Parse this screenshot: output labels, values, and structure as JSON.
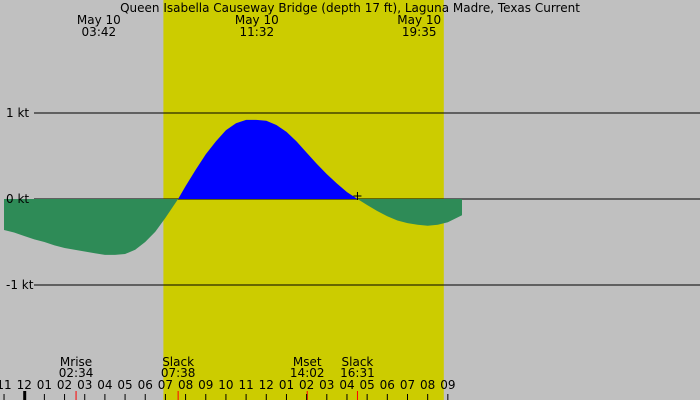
{
  "chart_data": {
    "type": "area",
    "title": "Queen Isabella Causeway Bridge (depth 17 ft), Laguna Madre, Texas Current",
    "units": "kt",
    "xlabel": "",
    "ylabel": "",
    "ylim": [
      -2.3,
      2.3
    ],
    "y_ticks": [
      {
        "value": 1,
        "label": "1 kt"
      },
      {
        "value": 0,
        "label": "0 kt"
      },
      {
        "value": -1,
        "label": "-1 kt"
      }
    ],
    "x_range_hours": [
      23,
      57.7
    ],
    "daylight_hours": [
      30.9,
      44.8
    ],
    "x_ticks": [
      {
        "hour": 23,
        "label": "11"
      },
      {
        "hour": 24,
        "label": "12"
      },
      {
        "hour": 25,
        "label": "01"
      },
      {
        "hour": 26,
        "label": "02"
      },
      {
        "hour": 27,
        "label": "03"
      },
      {
        "hour": 28,
        "label": "04"
      },
      {
        "hour": 29,
        "label": "05"
      },
      {
        "hour": 30,
        "label": "06"
      },
      {
        "hour": 31,
        "label": "07"
      },
      {
        "hour": 32,
        "label": "08"
      },
      {
        "hour": 33,
        "label": "09"
      },
      {
        "hour": 34,
        "label": "10"
      },
      {
        "hour": 35,
        "label": "11"
      },
      {
        "hour": 36,
        "label": "12"
      },
      {
        "hour": 37,
        "label": "01"
      },
      {
        "hour": 38,
        "label": "02"
      },
      {
        "hour": 39,
        "label": "03"
      },
      {
        "hour": 40,
        "label": "04"
      },
      {
        "hour": 41,
        "label": "05"
      },
      {
        "hour": 42,
        "label": "06"
      },
      {
        "hour": 43,
        "label": "07"
      },
      {
        "hour": 44,
        "label": "08"
      },
      {
        "hour": 45,
        "label": "09"
      }
    ],
    "midnight_hour": 24,
    "top_events": [
      {
        "hour": 27.7,
        "date": "May 10",
        "time": "03:42"
      },
      {
        "hour": 35.53,
        "date": "May 10",
        "time": "11:32"
      },
      {
        "hour": 43.58,
        "date": "May 10",
        "time": "19:35"
      }
    ],
    "bottom_events": [
      {
        "hour": 26.57,
        "label": "Mrise",
        "time": "02:34"
      },
      {
        "hour": 31.63,
        "label": "Slack",
        "time": "07:38"
      },
      {
        "hour": 38.03,
        "label": "Mset",
        "time": "14:02"
      },
      {
        "hour": 40.52,
        "label": "Slack",
        "time": "16:31"
      }
    ],
    "series": [
      {
        "x": [
          23,
          23.5,
          24,
          24.5,
          25,
          25.5,
          26,
          26.5,
          27,
          27.5,
          28,
          28.5,
          29,
          29.5,
          30,
          30.5,
          31,
          31.63,
          32,
          32.5,
          33,
          33.5,
          34,
          34.5,
          35,
          35.5,
          36,
          36.5,
          37,
          37.5,
          38,
          38.5,
          39,
          39.5,
          40,
          40.52,
          41,
          41.5,
          42,
          42.5,
          43,
          43.5,
          44,
          44.5,
          45,
          45.7
        ],
        "y": [
          -0.36,
          -0.39,
          -0.43,
          -0.47,
          -0.5,
          -0.54,
          -0.57,
          -0.59,
          -0.61,
          -0.63,
          -0.65,
          -0.65,
          -0.64,
          -0.59,
          -0.5,
          -0.38,
          -0.22,
          0,
          0.15,
          0.34,
          0.52,
          0.67,
          0.8,
          0.88,
          0.92,
          0.92,
          0.91,
          0.86,
          0.78,
          0.67,
          0.54,
          0.41,
          0.29,
          0.18,
          0.08,
          0,
          -0.07,
          -0.14,
          -0.2,
          -0.25,
          -0.28,
          -0.3,
          -0.31,
          -0.3,
          -0.27,
          -0.19
        ]
      }
    ],
    "colors": {
      "night": "#c0c0c0",
      "daylight": "#cccc00",
      "flood": "#0000ff",
      "ebb": "#2e8b57",
      "midnight_tick": "#000000",
      "event_tick": "#ff0000"
    }
  }
}
